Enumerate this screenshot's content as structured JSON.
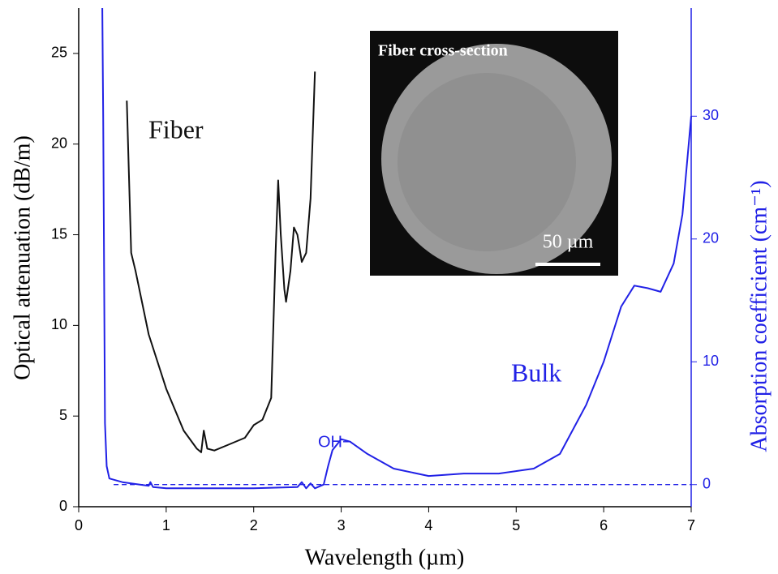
{
  "chart_data": {
    "type": "line",
    "xlabel": "Wavelength (µm)",
    "ylabel": "Optical attenuation (dB/m)",
    "y2label": "Absorption coefficient (cm⁻¹)",
    "xlim": [
      0,
      7
    ],
    "xticks": [
      0,
      1,
      2,
      3,
      4,
      5,
      6,
      7
    ],
    "ylim": [
      0,
      27.5
    ],
    "yticks": [
      0,
      5,
      10,
      15,
      20,
      25
    ],
    "y2lim": [
      -1.8,
      38.8
    ],
    "y2ticks": [
      0,
      10,
      20,
      30
    ],
    "y2color": "#2121e6",
    "series": [
      {
        "color": "#111111",
        "axis": "y",
        "x": [
          0.55,
          0.6,
          0.65,
          0.8,
          1.0,
          1.2,
          1.35,
          1.4,
          1.43,
          1.47,
          1.55,
          1.7,
          1.9,
          2.0,
          2.1,
          2.2,
          2.25,
          2.28,
          2.31,
          2.35,
          2.37,
          2.42,
          2.46,
          2.5,
          2.55,
          2.6,
          2.65,
          2.7
        ],
        "values": [
          22.4,
          14,
          13,
          9.5,
          6.5,
          4.2,
          3.2,
          3.0,
          4.2,
          3.2,
          3.1,
          3.4,
          3.8,
          4.5,
          4.8,
          6.0,
          14,
          18,
          15,
          12,
          11.3,
          13,
          15.4,
          15,
          13.5,
          14,
          17,
          24
        ]
      },
      {
        "color": "#2121e6",
        "axis": "y2",
        "x": [
          0.27,
          0.28,
          0.3,
          0.32,
          0.35,
          0.5,
          0.8,
          0.82,
          0.85,
          1.0,
          1.5,
          2.0,
          2.5,
          2.55,
          2.6,
          2.65,
          2.7,
          2.8,
          2.85,
          2.9,
          3.0,
          3.1,
          3.3,
          3.6,
          4.0,
          4.4,
          4.8,
          5.2,
          5.5,
          5.8,
          6.0,
          6.2,
          6.35,
          6.5,
          6.65,
          6.8,
          6.9,
          7.0
        ],
        "values": [
          38.8,
          30,
          5,
          1.5,
          0.5,
          0.2,
          -0.1,
          0.2,
          -0.2,
          -0.3,
          -0.3,
          -0.3,
          -0.2,
          0.2,
          -0.3,
          0.1,
          -0.3,
          0,
          1.5,
          2.8,
          3.7,
          3.5,
          2.5,
          1.3,
          0.7,
          0.9,
          0.9,
          1.3,
          2.5,
          6.5,
          10,
          14.5,
          16.2,
          16,
          15.7,
          18,
          22,
          30
        ]
      },
      {
        "color": "#2121e6",
        "axis": "y2",
        "dashed": true,
        "x": [
          0.4,
          7.0
        ],
        "values": [
          0,
          0
        ]
      }
    ],
    "annotations": [
      "Fiber",
      "Bulk",
      "OH−"
    ],
    "inset": {
      "title": "Fiber cross-section",
      "scale_bar": "50 µm"
    }
  }
}
